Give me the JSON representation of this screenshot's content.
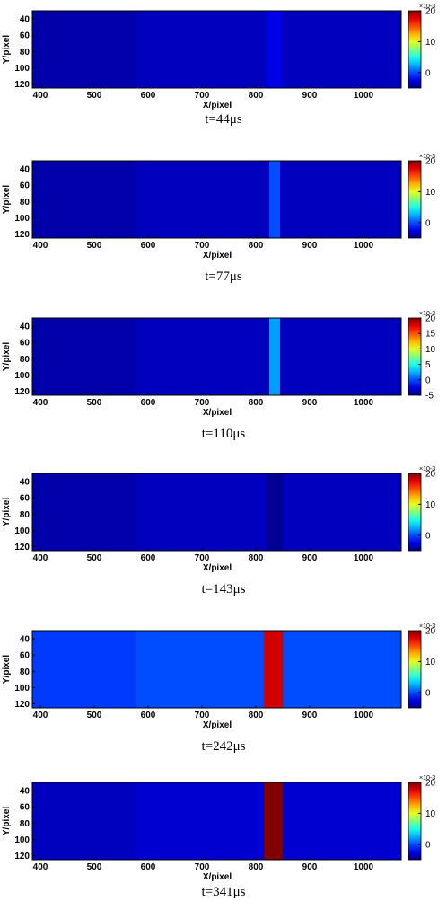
{
  "chart_data": [
    {
      "type": "heatmap",
      "caption": "t=44μs",
      "xlabel": "X/pixel",
      "ylabel": "Y/pixel",
      "xticks": [
        400,
        500,
        600,
        700,
        800,
        900,
        1000
      ],
      "yticks": [
        40,
        60,
        80,
        100,
        120
      ],
      "xlim": [
        385,
        1070
      ],
      "ylim": [
        30,
        125
      ],
      "colorbar": {
        "ticks": [
          0,
          10,
          20
        ],
        "lim": [
          -5,
          20
        ],
        "exponent_label": "×10-3"
      },
      "background_value": -3.5,
      "band": {
        "x": [
          820,
          850
        ],
        "value": -2.5
      }
    },
    {
      "type": "heatmap",
      "caption": "t=77μs",
      "xlabel": "X/pixel",
      "ylabel": "Y/pixel",
      "xticks": [
        400,
        500,
        600,
        700,
        800,
        900,
        1000
      ],
      "yticks": [
        40,
        60,
        80,
        100,
        120
      ],
      "xlim": [
        385,
        1070
      ],
      "ylim": [
        30,
        125
      ],
      "colorbar": {
        "ticks": [
          0,
          10,
          20
        ],
        "lim": [
          -5,
          20
        ],
        "exponent_label": "×10-3"
      },
      "background_value": -3.5,
      "band": {
        "x": [
          825,
          845
        ],
        "value": 0
      }
    },
    {
      "type": "heatmap",
      "caption": "t=110μs",
      "xlabel": "X/pixel",
      "ylabel": "Y/pixel",
      "xticks": [
        400,
        500,
        600,
        700,
        800,
        900,
        1000
      ],
      "yticks": [
        40,
        60,
        80,
        100,
        120
      ],
      "xlim": [
        385,
        1070
      ],
      "ylim": [
        30,
        125
      ],
      "colorbar": {
        "ticks": [
          -5,
          0,
          5,
          10,
          15,
          20
        ],
        "lim": [
          -5,
          20
        ],
        "exponent_label": "×10-3"
      },
      "background_value": -3.5,
      "band": {
        "x": [
          825,
          845
        ],
        "value": 2
      }
    },
    {
      "type": "heatmap",
      "caption": "t=143μs",
      "xlabel": "X/pixel",
      "ylabel": "Y/pixel",
      "xticks": [
        400,
        500,
        600,
        700,
        800,
        900,
        1000
      ],
      "yticks": [
        40,
        60,
        80,
        100,
        120
      ],
      "xlim": [
        385,
        1070
      ],
      "ylim": [
        30,
        125
      ],
      "colorbar": {
        "ticks": [
          0,
          10,
          20
        ],
        "lim": [
          -5,
          20
        ],
        "exponent_label": "×10-3"
      },
      "background_value": -3.5,
      "band": {
        "x": [
          820,
          850
        ],
        "value": -4.5
      }
    },
    {
      "type": "heatmap",
      "caption": "t=242μs",
      "xlabel": "X/pixel",
      "ylabel": "Y/pixel",
      "xticks": [
        400,
        500,
        600,
        700,
        800,
        900,
        1000
      ],
      "yticks": [
        40,
        60,
        80,
        100,
        120
      ],
      "xlim": [
        385,
        1070
      ],
      "ylim": [
        30,
        125
      ],
      "colorbar": {
        "ticks": [
          0,
          10,
          20
        ],
        "lim": [
          -5,
          20
        ],
        "exponent_label": "×10-3"
      },
      "background_value": 0,
      "band": {
        "x": [
          815,
          850
        ],
        "value": 18
      }
    },
    {
      "type": "heatmap",
      "caption": "t=341μs",
      "xlabel": "X/pixel",
      "ylabel": "Y/pixel",
      "xticks": [
        400,
        500,
        600,
        700,
        800,
        900,
        1000
      ],
      "yticks": [
        40,
        60,
        80,
        100,
        120
      ],
      "xlim": [
        385,
        1070
      ],
      "ylim": [
        30,
        125
      ],
      "colorbar": {
        "ticks": [
          0,
          10,
          20
        ],
        "lim": [
          -5,
          20
        ],
        "exponent_label": "×10-3"
      },
      "background_value": -3,
      "band": {
        "x": [
          815,
          850
        ],
        "value": 22
      }
    }
  ]
}
